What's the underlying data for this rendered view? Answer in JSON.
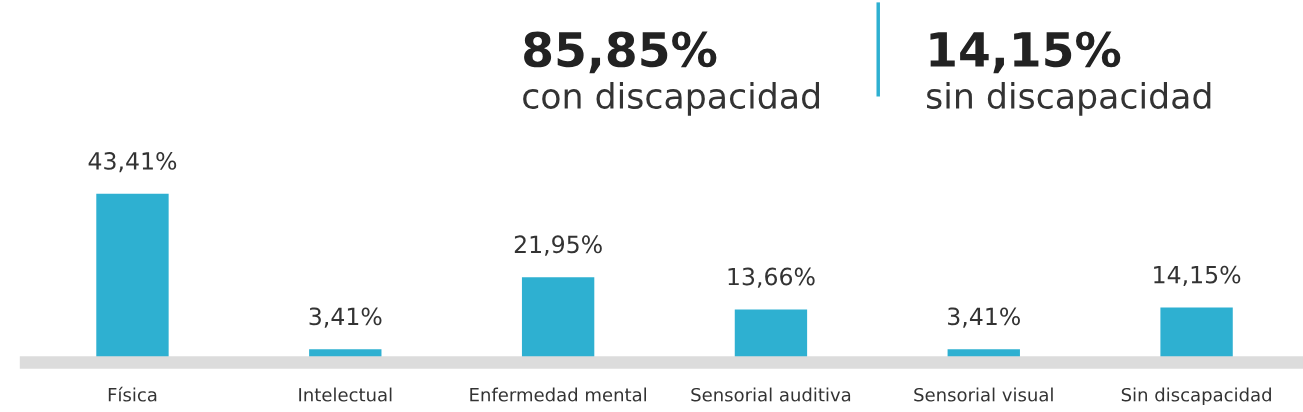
{
  "chart_data": {
    "type": "bar",
    "categories": [
      "Física",
      "Intelectual",
      "Enfermedad mental",
      "Sensorial auditiva",
      "Sensorial visual",
      "Sin discapacidad"
    ],
    "values": [
      43.41,
      3.41,
      21.95,
      13.66,
      3.41,
      14.15
    ],
    "value_labels": [
      "43,41%",
      "3,41%",
      "21,95%",
      "13,66%",
      "3,41%",
      "14,15%"
    ],
    "color": "#2eb0d1",
    "annotations": [
      "85,85%",
      "con discapacidad",
      "14,15%",
      "sin discapacidad"
    ],
    "grid": false,
    "legend": false
  }
}
